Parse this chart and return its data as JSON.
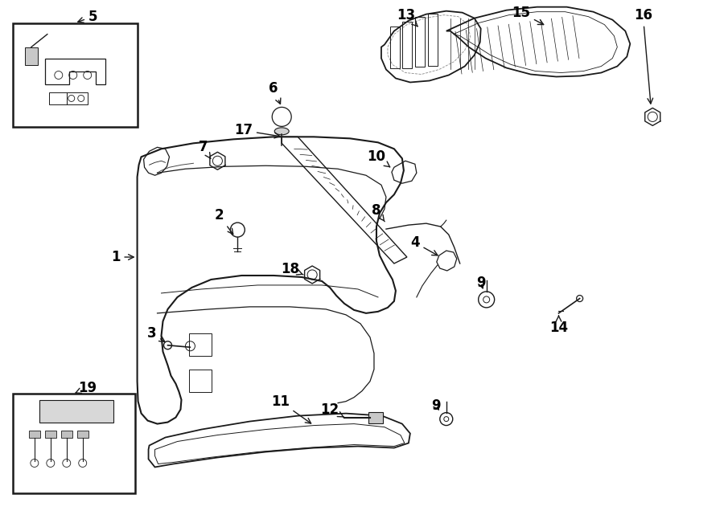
{
  "bg_color": "#ffffff",
  "line_color": "#1a1a1a",
  "text_color": "#000000",
  "fig_width": 9.0,
  "fig_height": 6.61,
  "dpi": 100
}
